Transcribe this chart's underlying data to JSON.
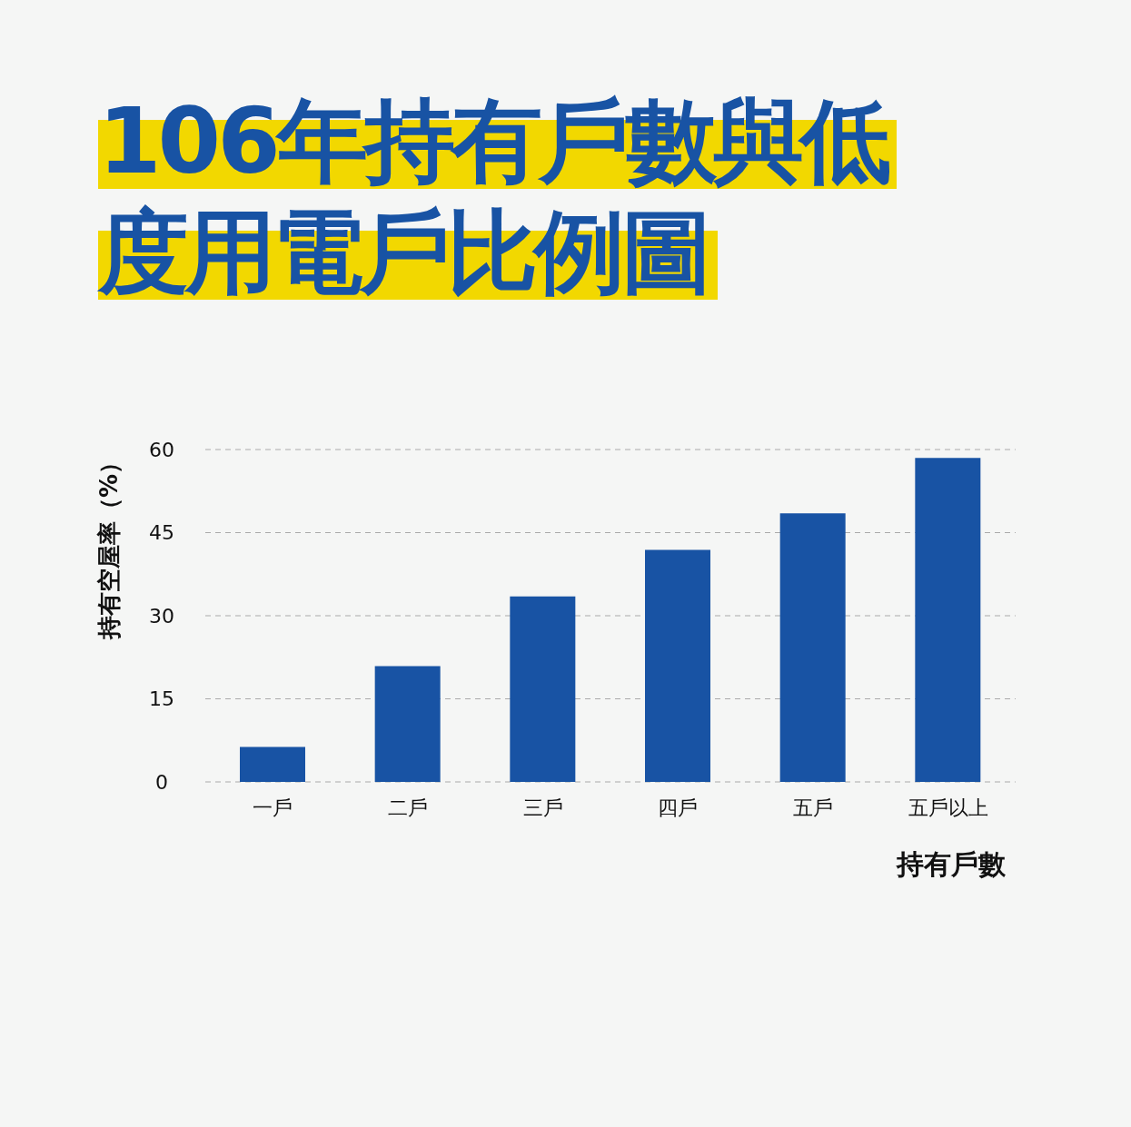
{
  "chart_data": {
    "type": "bar",
    "title": "106年持有戶數與低度用電戶比例圖",
    "xlabel": "持有戶數",
    "ylabel": "持有空屋率（%）",
    "categories": [
      "一戶",
      "二戶",
      "三戶",
      "四戶",
      "五戶",
      "五戶以上"
    ],
    "values": [
      6.3,
      20.9,
      33.5,
      41.9,
      48.5,
      58.5
    ],
    "color": "#1853a4",
    "ylim": [
      0,
      60
    ],
    "yticks": [
      0,
      15,
      30,
      45,
      60
    ],
    "grid": "y"
  }
}
